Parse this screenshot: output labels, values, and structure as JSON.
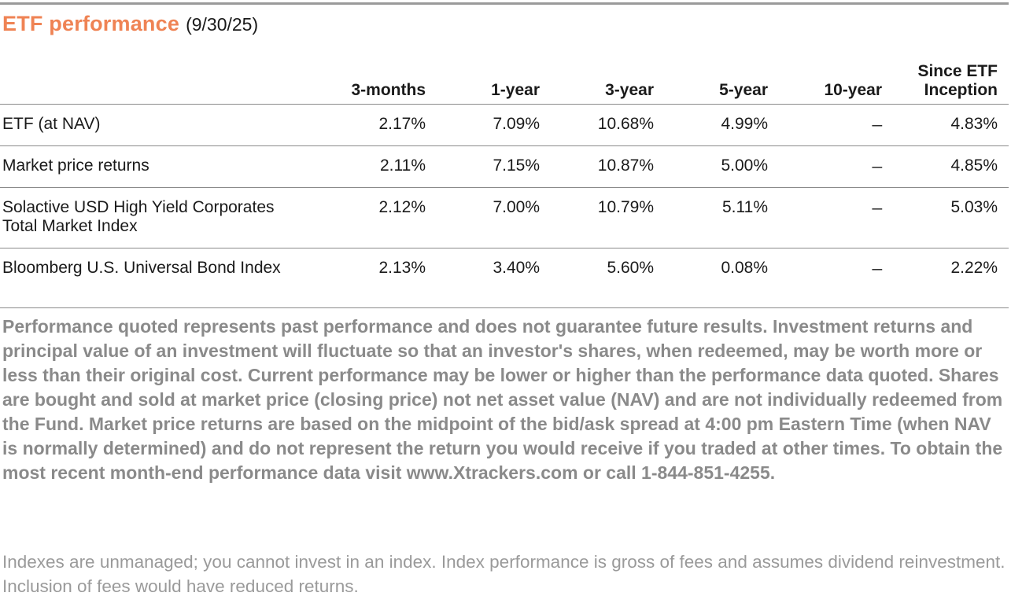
{
  "header": {
    "title": "ETF performance",
    "date": "(9/30/25)"
  },
  "table": {
    "columns": [
      "3-months",
      "1-year",
      "3-year",
      "5-year",
      "10-year",
      "Since ETF Inception"
    ],
    "rows": [
      {
        "label": "ETF (at NAV)",
        "values": [
          "2.17%",
          "7.09%",
          "10.68%",
          "4.99%",
          "_",
          "4.83%"
        ]
      },
      {
        "label": "Market price returns",
        "values": [
          "2.11%",
          "7.15%",
          "10.87%",
          "5.00%",
          "_",
          "4.85%"
        ]
      },
      {
        "label": "Solactive USD High Yield Corporates Total Market Index",
        "values": [
          "2.12%",
          "7.00%",
          "10.79%",
          "5.11%",
          "_",
          "5.03%"
        ]
      },
      {
        "label": "Bloomberg U.S. Universal Bond Index",
        "values": [
          "2.13%",
          "3.40%",
          "5.60%",
          "0.08%",
          "_",
          "2.22%"
        ]
      }
    ]
  },
  "disclaimer": "Performance quoted represents past performance and does not guarantee future results. Investment returns and principal value of an investment will fluctuate so that an investor's shares, when redeemed, may be worth more or less than their original cost. Current performance may be lower or higher than the performance data quoted. Shares are bought and sold at market price (closing price) not net asset value (NAV) and are not individually redeemed from the Fund. Market price returns are based on the midpoint of the bid/ask spread at 4:00 pm Eastern Time (when NAV is normally determined) and do not represent the return you would receive if you traded at other times. To obtain the most recent month-end performance data visit  www.Xtrackers.com or call 1-844-851-4255.",
  "footnote": "Indexes are unmanaged; you cannot invest in an index. Index performance is gross of fees and assumes dividend reinvestment. Inclusion of fees would have reduced returns.",
  "colors": {
    "title_accent": "#ef8354",
    "disclaimer_text": "#8a8a8a",
    "footnote_text": "#9a9a9a",
    "rule": "#8a8a8a"
  }
}
